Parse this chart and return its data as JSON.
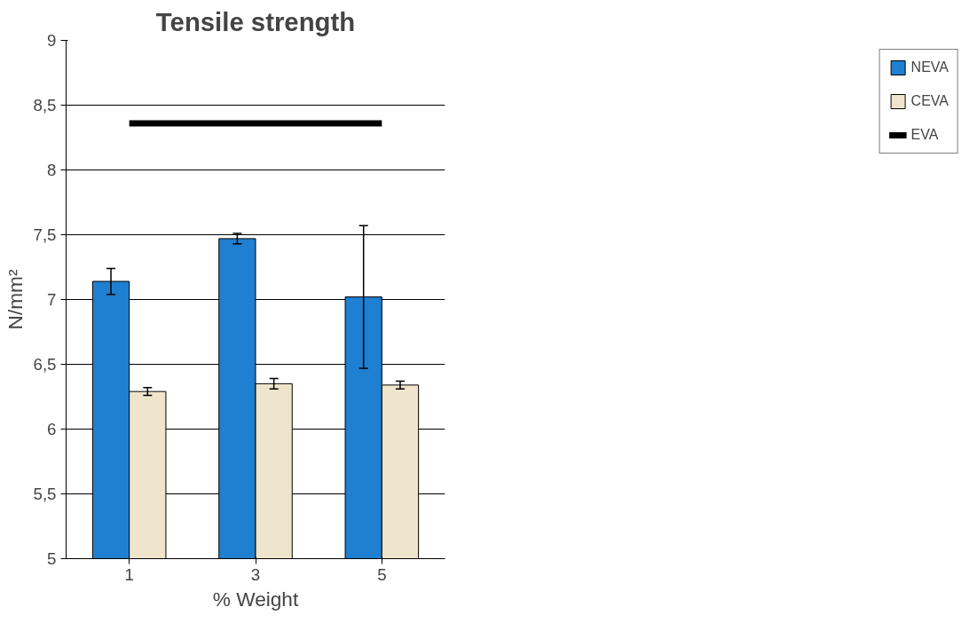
{
  "chart_data": {
    "type": "bar",
    "title": "Tensile strength",
    "xlabel": "% Weight",
    "ylabel": "N/mm²",
    "categories": [
      "1",
      "3",
      "5"
    ],
    "series": [
      {
        "name": "NEVA",
        "color": "#1f7fd0",
        "values": [
          7.14,
          7.47,
          7.02
        ],
        "errors": [
          0.1,
          0.04,
          0.55
        ]
      },
      {
        "name": "CEVA",
        "color": "#efe5cc",
        "values": [
          6.29,
          6.35,
          6.34
        ],
        "errors": [
          0.03,
          0.04,
          0.03
        ]
      },
      {
        "name": "EVA",
        "type": "line",
        "color": "#000000",
        "values": [
          8.36,
          8.36,
          8.36
        ]
      }
    ],
    "ylim": [
      5,
      9
    ],
    "yticks": [
      5,
      {
        "value": 5.5,
        "label": "5,5"
      },
      6,
      {
        "value": 6.5,
        "label": "6,5"
      },
      7,
      {
        "value": 7.5,
        "label": "7,5"
      },
      8,
      {
        "value": 8.5,
        "label": "8,5"
      },
      9
    ],
    "grid": "y",
    "legend": "right"
  }
}
